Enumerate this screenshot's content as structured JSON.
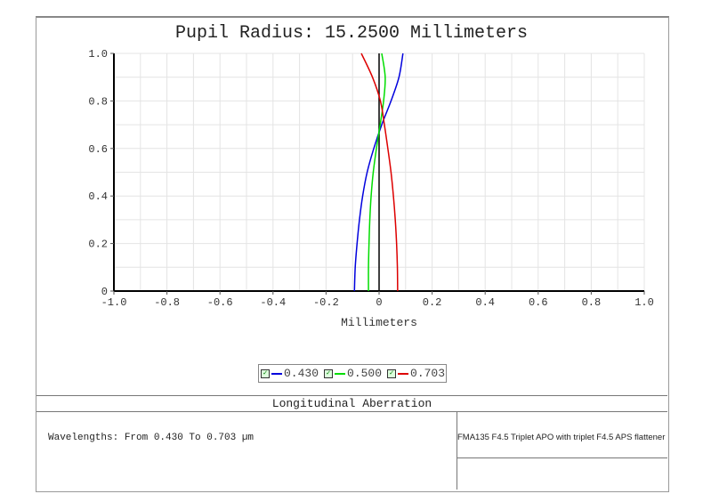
{
  "chart_data": {
    "type": "line",
    "title": "Pupil Radius: 15.2500 Millimeters",
    "xlabel": "Millimeters",
    "ylabel": "",
    "xlim": [
      -1.0,
      1.0
    ],
    "ylim": [
      0,
      1.0
    ],
    "grid": true,
    "x_ticks": [
      "-1.0",
      "-0.8",
      "-0.6",
      "-0.4",
      "-0.2",
      "0",
      "0.2",
      "0.4",
      "0.6",
      "0.8",
      "1.0"
    ],
    "y_ticks": [
      "0",
      "0.2",
      "0.4",
      "0.6",
      "0.8",
      "1.0"
    ],
    "legend_position": "bottom-center",
    "series": [
      {
        "name": "0.430",
        "color": "#0000dd",
        "y": [
          0,
          0.1,
          0.2,
          0.3,
          0.4,
          0.5,
          0.6,
          0.7,
          0.8,
          0.9,
          1.0
        ],
        "x": [
          -0.093,
          -0.09,
          -0.083,
          -0.074,
          -0.062,
          -0.045,
          -0.02,
          0.01,
          0.045,
          0.075,
          0.09
        ]
      },
      {
        "name": "0.500",
        "color": "#00dd00",
        "y": [
          0,
          0.1,
          0.2,
          0.3,
          0.4,
          0.5,
          0.6,
          0.7,
          0.8,
          0.9,
          1.0
        ],
        "x": [
          -0.04,
          -0.04,
          -0.038,
          -0.035,
          -0.03,
          -0.022,
          -0.01,
          0.004,
          0.017,
          0.023,
          0.01
        ]
      },
      {
        "name": "0.703",
        "color": "#dd0000",
        "y": [
          0,
          0.1,
          0.2,
          0.3,
          0.4,
          0.5,
          0.6,
          0.7,
          0.8,
          0.9,
          1.0
        ],
        "x": [
          0.07,
          0.069,
          0.066,
          0.061,
          0.054,
          0.045,
          0.033,
          0.02,
          0.005,
          -0.025,
          -0.067
        ]
      }
    ]
  },
  "footer": {
    "heading": "Longitudinal Aberration",
    "wavelengths": "Wavelengths: From 0.430 To 0.703 µm",
    "description": "FMA135 F4.5 Triplet APO with triplet F4.5 APS flattener"
  }
}
